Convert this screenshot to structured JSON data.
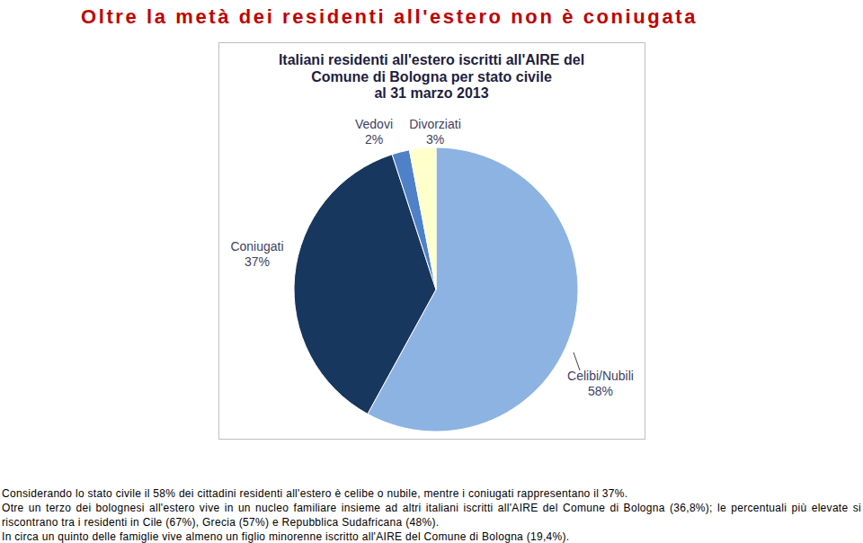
{
  "heading": "Oltre la metà dei residenti all'estero non è coniugata",
  "chart_data": {
    "type": "pie",
    "title": "Italiani residenti all'estero iscritti all'AIRE del\nComune di Bologna per stato civile\nal 31 marzo 2013",
    "categories": [
      "Celibi/Nubili",
      "Coniugati",
      "Vedovi",
      "Divorziati"
    ],
    "values": [
      58,
      37,
      2,
      3
    ],
    "value_labels": [
      "58%",
      "37%",
      "2%",
      "3%"
    ],
    "colors": [
      "#8DB3E2",
      "#17375E",
      "#4F81C8",
      "#FFFFCC"
    ],
    "data_labels": true
  },
  "notes": [
    "Considerando lo stato civile il 58% dei cittadini residenti all'estero è celibe o nubile, mentre i coniugati rappresentano il 37%.",
    "Otre un terzo dei bolognesi all'estero vive in un nucleo familiare insieme ad altri italiani iscritti all'AIRE del Comune di Bologna (36,8%); le percentuali più elevate si riscontrano tra i residenti in Cile (67%), Grecia (57%) e Repubblica Sudafricana (48%).",
    "In circa un quinto delle famiglie vive almeno un figlio minorenne iscritto all'AIRE del Comune di Bologna (19,4%)."
  ]
}
